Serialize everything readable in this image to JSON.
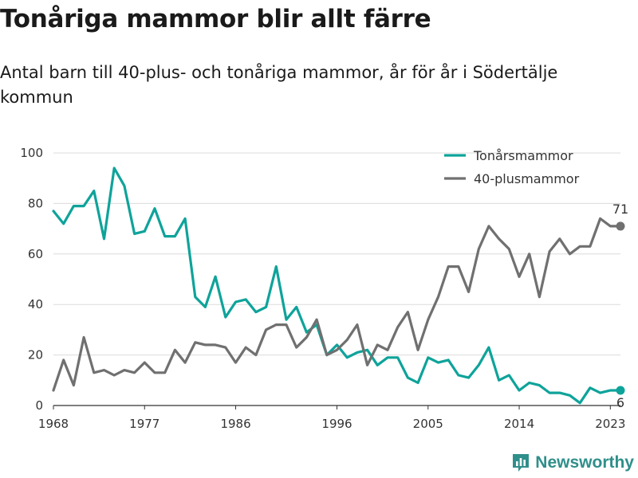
{
  "title": "Tonåriga mammor blir allt färre",
  "subtitle": "Antal barn till 40-plus- och tonåriga mammor, år för år i Södertälje kommun",
  "brand": "Newsworthy",
  "colors": {
    "teen": "#0ea39a",
    "plus40": "#707070",
    "grid": "#dcdcdc",
    "axis": "#333333",
    "brand": "#2f8f8a"
  },
  "chart_data": {
    "type": "line",
    "title": "Tonåriga mammor blir allt färre",
    "xlabel": "",
    "ylabel": "",
    "xlim": [
      1968,
      2024
    ],
    "ylim": [
      0,
      100
    ],
    "yticks": [
      0,
      20,
      40,
      60,
      80,
      100
    ],
    "xticks": [
      1968,
      1977,
      1986,
      1996,
      2005,
      2014,
      2023
    ],
    "grid": true,
    "legend": "top-right",
    "x": [
      1968,
      1969,
      1970,
      1971,
      1972,
      1973,
      1974,
      1975,
      1976,
      1977,
      1978,
      1979,
      1980,
      1981,
      1982,
      1983,
      1984,
      1985,
      1986,
      1987,
      1988,
      1989,
      1990,
      1991,
      1992,
      1993,
      1994,
      1995,
      1996,
      1997,
      1998,
      1999,
      2000,
      2001,
      2002,
      2003,
      2004,
      2005,
      2006,
      2007,
      2008,
      2009,
      2010,
      2011,
      2012,
      2013,
      2014,
      2015,
      2016,
      2017,
      2018,
      2019,
      2020,
      2021,
      2022,
      2023,
      2024
    ],
    "series": [
      {
        "name": "Tonårsmammor",
        "color": "#0ea39a",
        "values": [
          77,
          72,
          79,
          79,
          85,
          66,
          94,
          87,
          68,
          69,
          78,
          67,
          67,
          74,
          43,
          39,
          51,
          35,
          41,
          42,
          37,
          39,
          55,
          34,
          39,
          29,
          32,
          20,
          24,
          19,
          21,
          22,
          16,
          19,
          19,
          11,
          9,
          19,
          17,
          18,
          12,
          11,
          16,
          23,
          10,
          12,
          6,
          9,
          8,
          5,
          5,
          4,
          1,
          7,
          5,
          6,
          6
        ],
        "end_label": "6"
      },
      {
        "name": "40-plusmammor",
        "color": "#707070",
        "values": [
          6,
          18,
          8,
          27,
          13,
          14,
          12,
          14,
          13,
          17,
          13,
          13,
          22,
          17,
          25,
          24,
          24,
          23,
          17,
          23,
          20,
          30,
          32,
          32,
          23,
          27,
          34,
          20,
          22,
          26,
          32,
          16,
          24,
          22,
          31,
          37,
          22,
          34,
          43,
          55,
          55,
          45,
          62,
          71,
          66,
          62,
          51,
          60,
          43,
          61,
          66,
          60,
          63,
          63,
          74,
          71,
          71
        ],
        "end_label": "71"
      }
    ]
  }
}
